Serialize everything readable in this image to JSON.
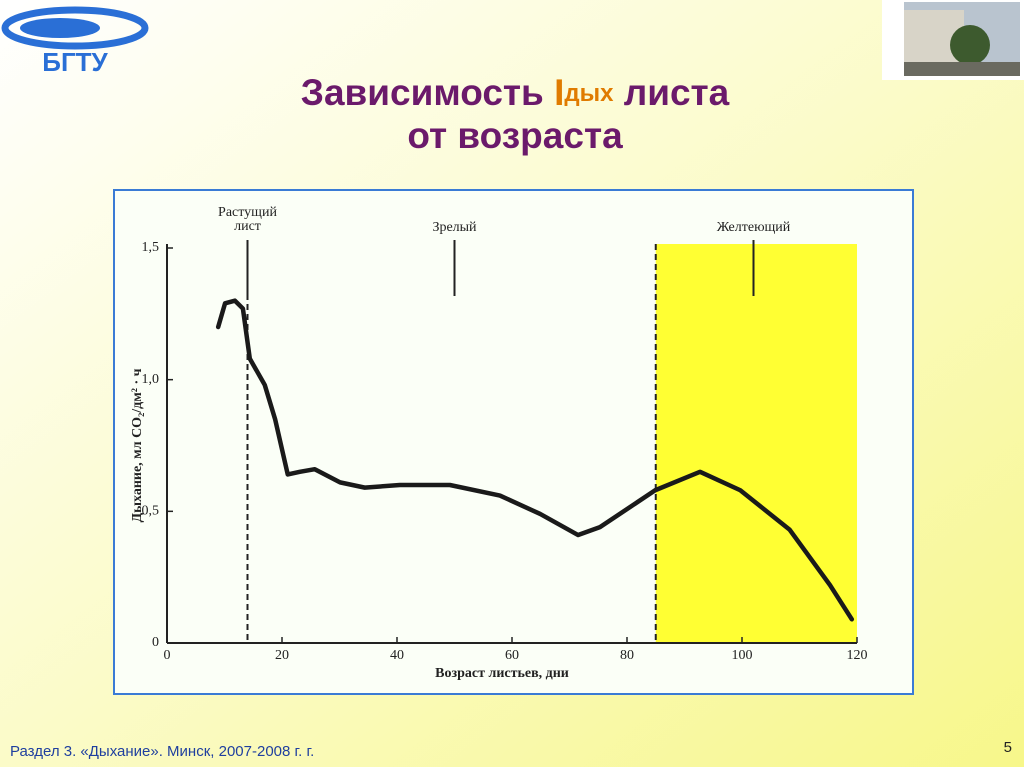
{
  "logo": "БГТУ",
  "slide": {
    "title_start": "Зависимость ",
    "symbol": "I",
    "subscript": "дых",
    "title_end": " листа",
    "title_line2": "от возраста",
    "footer": "Раздел 3. «Дыхание». Минск, 2007-2008 г. г.",
    "page_number": "5"
  },
  "chart_data": {
    "type": "line",
    "x": [
      8.9,
      10.1,
      11.8,
      13.2,
      14.4,
      17.0,
      18.8,
      21.0,
      23.1,
      25.7,
      30.1,
      34.4,
      40.5,
      49.2,
      57.9,
      64.9,
      71.5,
      75.3,
      84.9,
      92.7,
      99.7,
      108.3,
      115.3,
      119.1
    ],
    "values": [
      1.2,
      1.29,
      1.3,
      1.27,
      1.08,
      0.98,
      0.85,
      0.64,
      0.65,
      0.66,
      0.61,
      0.59,
      0.6,
      0.6,
      0.56,
      0.49,
      0.41,
      0.44,
      0.58,
      0.65,
      0.58,
      0.43,
      0.22,
      0.09
    ],
    "color": "#1a1a1a",
    "xlim": [
      0,
      120
    ],
    "xticks": [
      0,
      20,
      40,
      60,
      80,
      100,
      120
    ],
    "ylim": [
      0,
      1.5
    ],
    "yticks": [
      {
        "value": 0,
        "label": "0"
      },
      {
        "value": 0.5,
        "label": "0,5"
      },
      {
        "value": 1.0,
        "label": "1,0"
      },
      {
        "value": 1.5,
        "label": "1,5"
      }
    ],
    "x_label": "Возраст листьев, дни",
    "y_label": "Дыхание, мл CO₂/дм² · ч",
    "dividers": [
      14,
      85
    ],
    "shaded_region": {
      "from": 85,
      "to": 120,
      "color": "#ffff33"
    },
    "annotations": [
      {
        "lines": [
          "Растущий",
          "лист"
        ],
        "x": 14
      },
      {
        "lines": [
          "Зрелый"
        ],
        "x": 50
      },
      {
        "lines": [
          "Желтеющий"
        ],
        "x": 102
      }
    ]
  }
}
